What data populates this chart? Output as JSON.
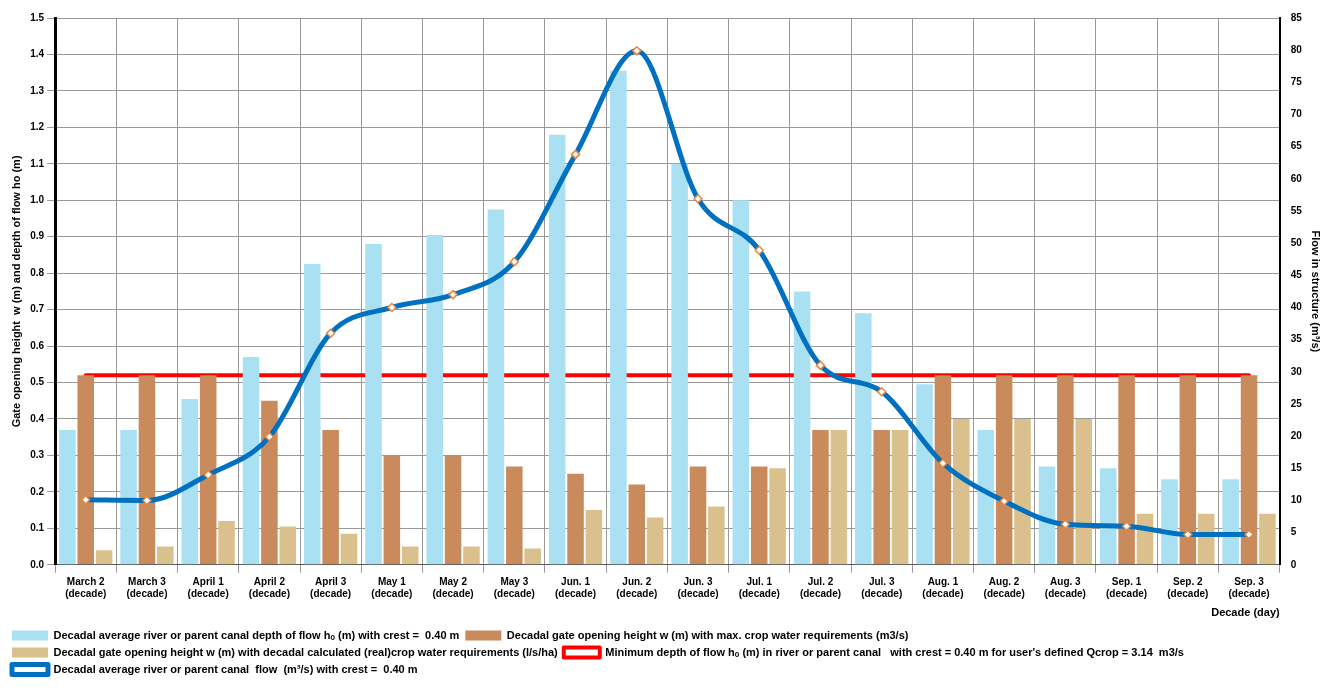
{
  "chart_data": {
    "type": "bar",
    "xlabel": "Decade (day)",
    "ylabel": "Gate opening height  w (m) and depth of flow ho (m)",
    "y2label": "Flow in structure (m³/s)",
    "categories": [
      "March 2 (decade)",
      "March 3 (decade)",
      "April 1 (decade)",
      "April 2 (decade)",
      "April 3 (decade)",
      "May 1 (decade)",
      "May 2 (decade)",
      "May 3 (decade)",
      "Jun. 1 (decade)",
      "Jun. 2 (decade)",
      "Jun. 3 (decade)",
      "Jul. 1 (decade)",
      "Jul. 2 (decade)",
      "Jul. 3 (decade)",
      "Aug. 1 (decade)",
      "Aug. 2 (decade)",
      "Aug. 3 (decade)",
      "Sep. 1 (decade)",
      "Sep. 2 (decade)",
      "Sep. 3 (decade)"
    ],
    "series": [
      {
        "name": "Decadal average river or parent canal depth of flow hₒ (m) with crest =  0.40 m",
        "color": "#a9e0f2",
        "values": [
          0.37,
          0.37,
          0.455,
          0.57,
          0.825,
          0.88,
          0.905,
          0.975,
          1.18,
          1.355,
          1.1,
          1.0,
          0.75,
          0.69,
          0.495,
          0.37,
          0.27,
          0.265,
          0.235,
          0.235
        ]
      },
      {
        "name": "Decadal gate opening height w (m) with max. crop water requirements (m3/s)",
        "color": "#c98a5c",
        "values": [
          0.52,
          0.52,
          0.52,
          0.45,
          0.37,
          0.3,
          0.3,
          0.27,
          0.25,
          0.22,
          0.27,
          0.27,
          0.37,
          0.37,
          0.52,
          0.52,
          0.52,
          0.52,
          0.52,
          0.52
        ]
      },
      {
        "name": "Decadal gate opening height w (m) with decadal calculated (real)crop water requirements (l/s/ha)",
        "color": "#d9c08c",
        "values": [
          0.04,
          0.05,
          0.12,
          0.105,
          0.085,
          0.05,
          0.05,
          0.045,
          0.15,
          0.13,
          0.16,
          0.265,
          0.37,
          0.37,
          0.4,
          0.4,
          0.4,
          0.14,
          0.14,
          0.14
        ]
      },
      {
        "name": "Minimum depth of flow hₒ (m) in river or parent canal   with crest = 0.40 m for user's defined Qcrop = 3.14  m3/s",
        "type": "line",
        "color": "#ff0000",
        "marker": "none",
        "values": [
          0.52,
          0.52,
          0.52,
          0.52,
          0.52,
          0.52,
          0.52,
          0.52,
          0.52,
          0.52,
          0.52,
          0.52,
          0.52,
          0.52,
          0.52,
          0.52,
          0.52,
          0.52,
          0.52,
          0.52
        ]
      },
      {
        "name": "Decadal average river or parent canal  flow  (m³/s) with crest =  0.40 m",
        "type": "line",
        "axis": "y2",
        "color": "#0070c0",
        "marker": "diamond",
        "values": [
          10.1,
          10,
          14,
          19.9,
          36,
          40,
          42,
          47.1,
          63.8,
          79.9,
          56.9,
          48.9,
          31,
          26.9,
          15.8,
          9.9,
          6.3,
          6,
          4.7,
          4.7
        ]
      }
    ],
    "ylim": [
      0,
      1.5
    ],
    "yticks": [
      {
        "value": 0,
        "label": "0.0"
      },
      {
        "value": 0.1,
        "label": "0.1"
      },
      {
        "value": 0.2,
        "label": "0.2"
      },
      {
        "value": 0.3,
        "label": "0.3"
      },
      {
        "value": 0.4,
        "label": "0.4"
      },
      {
        "value": 0.5,
        "label": "0.5"
      },
      {
        "value": 0.6,
        "label": "0.6"
      },
      {
        "value": 0.7,
        "label": "0.7"
      },
      {
        "value": 0.8,
        "label": "0.8"
      },
      {
        "value": 0.9,
        "label": "0.9"
      },
      {
        "value": 1,
        "label": "1.0"
      },
      {
        "value": 1.1,
        "label": "1.1"
      },
      {
        "value": 1.2,
        "label": "1.2"
      },
      {
        "value": 1.3,
        "label": "1.3"
      },
      {
        "value": 1.4,
        "label": "1.4"
      },
      {
        "value": 1.5,
        "label": "1.5"
      }
    ],
    "y2lim": [
      0,
      85
    ],
    "y2ticks": [
      0,
      5,
      10,
      15,
      20,
      25,
      30,
      35,
      40,
      45,
      50,
      55,
      60,
      65,
      70,
      75,
      80,
      85
    ],
    "grid": true,
    "legend": "bottom"
  }
}
